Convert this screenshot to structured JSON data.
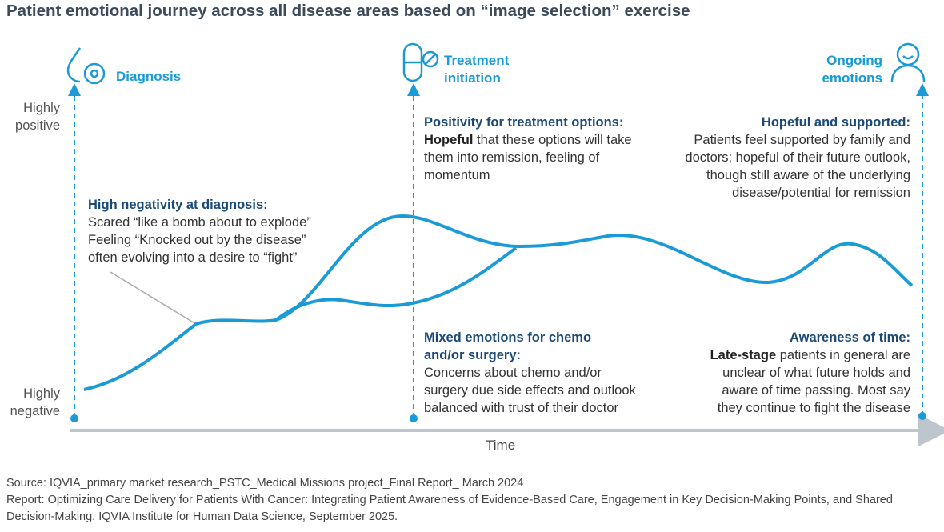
{
  "title": "Patient emotional journey across all disease areas based on “image selection” exercise",
  "y_axis": {
    "top": "Highly positive",
    "bottom": "Highly negative"
  },
  "x_axis": {
    "label": "Time"
  },
  "stages": [
    {
      "label": "Diagnosis"
    },
    {
      "label_lines": [
        "Treatment",
        "initiation"
      ]
    },
    {
      "label_lines": [
        "Ongoing",
        "emotions"
      ]
    }
  ],
  "annotations": [
    {
      "heading": "High negativity at diagnosis:",
      "lines": [
        "Scared “like a bomb about to explode”",
        "Feeling “Knocked out by the disease”",
        "often evolving into a desire to “fight”"
      ]
    },
    {
      "heading": "Positivity for treatment options:",
      "lead": "Hopeful",
      "lines": [
        "that these options will take",
        "them into remission, feeling of",
        "momentum"
      ]
    },
    {
      "heading": "Hopeful and supported:",
      "lines": [
        "Patients feel supported by family and",
        "doctors; hopeful of their future outlook,",
        "though still aware of the underlying",
        "disease/potential for remission"
      ]
    },
    {
      "heading_lines": [
        "Mixed emotions for chemo",
        "and/or surgery:"
      ],
      "lines": [
        "Concerns about chemo and/or",
        "surgery due side effects and outlook",
        "balanced with trust of their doctor"
      ]
    },
    {
      "heading": "Awareness of time:",
      "lead": "Late-stage",
      "lines": [
        "patients in general are",
        "unclear of what future holds and",
        "aware of time passing. Most say",
        "they continue to fight the disease"
      ]
    }
  ],
  "footer": {
    "source": "Source: IQVIA_primary market research_PSTC_Medical Missions project_Final Report_ March 2024",
    "report": "Report: Optimizing Care Delivery for Patients With Cancer: Integrating Patient Awareness of Evidence-Based Care, Engagement in Key Decision-Making Points, and Shared Decision-Making. IQVIA Institute for Human Data Science, September 2025."
  }
}
